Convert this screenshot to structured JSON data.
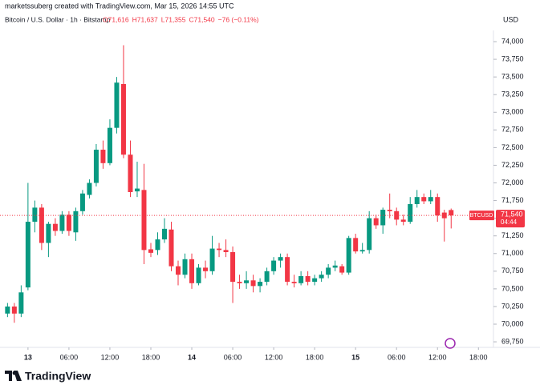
{
  "header": {
    "attribution": "marketssuberg created with TradingView.com, Mar 15, 2026 14:55 UTC",
    "symbol": "Bitcoin / U.S. Dollar · 1h · Bitstamp",
    "ohlc": [
      "O71,616",
      "H71,637",
      "L71,355",
      "C71,540",
      "−76 (−0.11%)"
    ],
    "currency": "USD"
  },
  "footer": {
    "brand": "TradingView"
  },
  "chart_data": {
    "type": "candlestick",
    "up_color": "#089981",
    "down_color": "#f23645",
    "x": [
      -3,
      -2,
      -1,
      0,
      1,
      2,
      3,
      4,
      5,
      6,
      7,
      8,
      9,
      10,
      11,
      12,
      13,
      14,
      15,
      16,
      17,
      18,
      19,
      20,
      21,
      22,
      23,
      24,
      25,
      26,
      27,
      28,
      29,
      30,
      31,
      32,
      33,
      34,
      35,
      36,
      37,
      38,
      39,
      40,
      41,
      42,
      43,
      44,
      45,
      46,
      47,
      48,
      49,
      50,
      51,
      52,
      53,
      54,
      55,
      56,
      57,
      58,
      59,
      60,
      61,
      62
    ],
    "open": [
      70150,
      70250,
      70150,
      70520,
      71450,
      71650,
      71150,
      71420,
      71320,
      71550,
      71300,
      71600,
      71830,
      72000,
      72470,
      72280,
      72780,
      73400,
      72400,
      71880,
      71900,
      71060,
      71050,
      71200,
      71340,
      70820,
      70700,
      70920,
      70580,
      70800,
      70750,
      71070,
      71050,
      71020,
      70600,
      70580,
      70620,
      70540,
      70600,
      70750,
      70900,
      70950,
      70600,
      70580,
      70680,
      70600,
      70650,
      70700,
      70800,
      70820,
      70730,
      71220,
      71030,
      71050,
      71500,
      71400,
      71620,
      71600,
      71480,
      71450,
      71700,
      71800,
      71740,
      71800,
      71580,
      71616
    ],
    "high": [
      70300,
      70300,
      70550,
      72000,
      71750,
      71700,
      71450,
      71500,
      71600,
      71600,
      71650,
      71900,
      72050,
      72550,
      72600,
      72900,
      73500,
      73950,
      72600,
      72300,
      72270,
      71150,
      71300,
      71500,
      71450,
      70900,
      71000,
      71000,
      70850,
      70900,
      71250,
      71150,
      71200,
      71100,
      70700,
      70750,
      70700,
      70650,
      70800,
      70950,
      71000,
      71000,
      70700,
      70750,
      70750,
      70700,
      70750,
      70850,
      70900,
      70850,
      71250,
      71280,
      71150,
      71600,
      71550,
      71650,
      71850,
      71650,
      71550,
      71800,
      71900,
      71850,
      71900,
      71850,
      71620,
      71637
    ],
    "low": [
      70100,
      70020,
      70100,
      70480,
      71300,
      71050,
      70950,
      71250,
      71280,
      71250,
      71180,
      71550,
      71780,
      71950,
      72200,
      72250,
      72700,
      72350,
      71800,
      71800,
      70850,
      70950,
      70980,
      71150,
      70750,
      70550,
      70650,
      70500,
      70550,
      70650,
      70700,
      70950,
      70950,
      70300,
      70500,
      70500,
      70450,
      70450,
      70550,
      70700,
      70800,
      70550,
      70520,
      70550,
      70550,
      70550,
      70600,
      70650,
      70750,
      70700,
      70700,
      71000,
      71000,
      71000,
      71350,
      71280,
      71500,
      71400,
      71400,
      71420,
      71650,
      71700,
      71700,
      71450,
      71170,
      71355
    ],
    "close": [
      70250,
      70150,
      70450,
      71450,
      71650,
      71150,
      71420,
      71320,
      71550,
      71320,
      71600,
      71850,
      72000,
      72470,
      72280,
      72780,
      73420,
      72400,
      71870,
      71920,
      71050,
      71010,
      71200,
      71350,
      70820,
      70700,
      70920,
      70580,
      70800,
      70750,
      71070,
      71050,
      71020,
      70600,
      70580,
      70620,
      70540,
      70600,
      70750,
      70900,
      70950,
      70600,
      70580,
      70680,
      70600,
      70650,
      70700,
      70800,
      70830,
      70730,
      71220,
      71030,
      71050,
      71500,
      71400,
      71620,
      71600,
      71480,
      71450,
      71700,
      71800,
      71740,
      71800,
      71540,
      71500,
      71540
    ],
    "xlim": [
      -4.1,
      68.2
    ],
    "xticks": [
      {
        "value": 0,
        "label": "13"
      },
      {
        "value": 6,
        "label": "06:00"
      },
      {
        "value": 12,
        "label": "12:00"
      },
      {
        "value": 18,
        "label": "18:00"
      },
      {
        "value": 24,
        "label": "14"
      },
      {
        "value": 30,
        "label": "06:00"
      },
      {
        "value": 36,
        "label": "12:00"
      },
      {
        "value": 42,
        "label": "18:00"
      },
      {
        "value": 48,
        "label": "15"
      },
      {
        "value": 54,
        "label": "06:00"
      },
      {
        "value": 60,
        "label": "12:00"
      },
      {
        "value": 66,
        "label": "18:00"
      }
    ],
    "ylim": [
      69694,
      74159
    ],
    "yticks": [
      {
        "value": 69750,
        "label": "69,750"
      },
      {
        "value": 70000,
        "label": "70,000"
      },
      {
        "value": 70250,
        "label": "70,250"
      },
      {
        "value": 70500,
        "label": "70,500"
      },
      {
        "value": 70750,
        "label": "70,750"
      },
      {
        "value": 71000,
        "label": "71,000"
      },
      {
        "value": 71250,
        "label": "71,250"
      },
      {
        "value": 71500,
        "label": "71,500"
      },
      {
        "value": 71750,
        "label": "71,750"
      },
      {
        "value": 72000,
        "label": "72,000"
      },
      {
        "value": 72250,
        "label": "72,250"
      },
      {
        "value": 72500,
        "label": "72,500"
      },
      {
        "value": 72750,
        "label": "72,750"
      },
      {
        "value": 73000,
        "label": "73,000"
      },
      {
        "value": 73250,
        "label": "73,250"
      },
      {
        "value": 73500,
        "label": "73,500"
      },
      {
        "value": 73750,
        "label": "73,750"
      },
      {
        "value": 74000,
        "label": "74,000"
      }
    ],
    "grid": false,
    "last_price": {
      "symbol": "BTCUSD",
      "value": 71540,
      "label": "71,540",
      "countdown": "04:44"
    }
  }
}
